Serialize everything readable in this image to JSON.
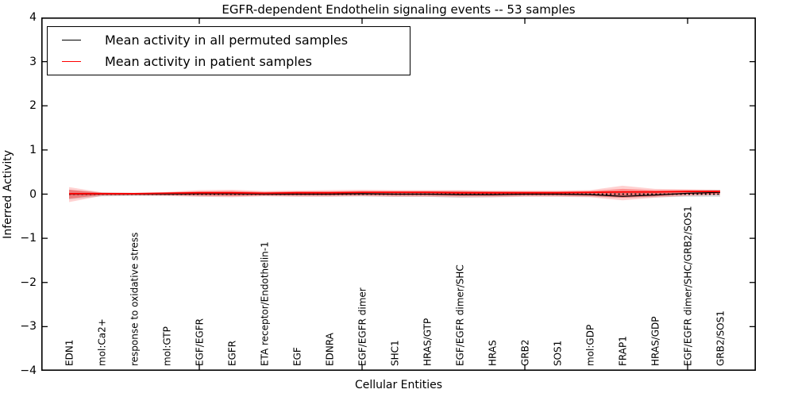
{
  "title": "EGFR-dependent Endothelin signaling events -- 53 samples",
  "axes": {
    "ylabel": "Inferred Activity",
    "xlabel": "Cellular Entities",
    "ylim": [
      -4,
      4
    ],
    "ytick_values": [
      4,
      3,
      2,
      1,
      0,
      -1,
      -2,
      -3,
      -4
    ],
    "ytick_labels": [
      "4",
      "3",
      "2",
      "1",
      "0",
      "−1",
      "−2",
      "−3",
      "−4"
    ],
    "x_major_tick_values": [
      5,
      10,
      15,
      20
    ],
    "grid": false
  },
  "legend": {
    "position": "upper left",
    "entries": [
      {
        "label": "Mean activity in all permuted samples",
        "color": "#000000"
      },
      {
        "label": "Mean activity in patient samples",
        "color": "#ff0000"
      }
    ]
  },
  "colors": {
    "axis": "#000000",
    "zero_line": "#000000",
    "permuted_line": "#000000",
    "patient_line": "#ff0000",
    "permuted_band": "rgba(0,0,0,0.13)",
    "patient_band_outer": "rgba(255,0,0,0.18)",
    "patient_band_inner": "rgba(255,0,0,0.32)"
  },
  "chart_data": {
    "type": "line",
    "title": "EGFR-dependent Endothelin signaling events -- 53 samples",
    "xlabel": "Cellular Entities",
    "ylabel": "Inferred Activity",
    "ylim": [
      -4,
      4
    ],
    "grid": false,
    "legend_position": "upper left",
    "reference_line_y": 0,
    "x": [
      1,
      2,
      3,
      4,
      5,
      6,
      7,
      8,
      9,
      10,
      11,
      12,
      13,
      14,
      15,
      16,
      17,
      18,
      19,
      20,
      21
    ],
    "categories": [
      "EDN1",
      "mol:Ca2+",
      "response to oxidative stress",
      "mol:GTP",
      "EGF/EGFR",
      "EGFR",
      "ETA receptor/Endothelin-1",
      "EGF",
      "EDNRA",
      "EGF/EGFR dimer",
      "SHC1",
      "HRAS/GTP",
      "EGF/EGFR dimer/SHC",
      "HRAS",
      "GRB2",
      "SOS1",
      "mol:GDP",
      "FRAP1",
      "HRAS/GDP",
      "EGF/EGFR dimer/SHC/GRB2/SOS1",
      "GRB2/SOS1"
    ],
    "series": [
      {
        "name": "Mean activity in all permuted samples",
        "color": "#000000",
        "values": [
          0,
          0,
          0,
          0,
          0.01,
          0.01,
          0,
          0,
          0,
          0.01,
          0,
          0,
          -0.01,
          -0.01,
          0,
          0,
          -0.01,
          -0.05,
          -0.02,
          0.02,
          0.04
        ]
      },
      {
        "name": "Mean activity in patient samples",
        "color": "#ff0000",
        "values": [
          0.01,
          0.01,
          0.01,
          0.02,
          0.03,
          0.03,
          0.02,
          0.03,
          0.03,
          0.04,
          0.04,
          0.04,
          0.03,
          0.03,
          0.03,
          0.03,
          0.04,
          0.05,
          0.05,
          0.06,
          0.06
        ]
      }
    ],
    "bands": [
      {
        "name": "permuted samples std band",
        "color": "rgba(0,0,0,0.13)",
        "upper": [
          0.1,
          0.04,
          0.03,
          0.04,
          0.05,
          0.05,
          0.04,
          0.05,
          0.05,
          0.05,
          0.05,
          0.06,
          0.07,
          0.06,
          0.05,
          0.05,
          0.05,
          0.06,
          0.06,
          0.08,
          0.1
        ],
        "lower": [
          -0.12,
          -0.05,
          -0.04,
          -0.04,
          -0.05,
          -0.05,
          -0.04,
          -0.05,
          -0.05,
          -0.05,
          -0.06,
          -0.06,
          -0.08,
          -0.07,
          -0.05,
          -0.05,
          -0.06,
          -0.08,
          -0.07,
          -0.06,
          -0.06
        ]
      },
      {
        "name": "patient samples std band (outer)",
        "color": "rgba(255,0,0,0.18)",
        "upper": [
          0.16,
          0.04,
          0.03,
          0.05,
          0.09,
          0.1,
          0.07,
          0.08,
          0.09,
          0.1,
          0.09,
          0.09,
          0.09,
          0.08,
          0.08,
          0.08,
          0.09,
          0.19,
          0.12,
          0.11,
          0.1
        ],
        "lower": [
          -0.18,
          -0.04,
          -0.03,
          -0.04,
          -0.06,
          -0.07,
          -0.05,
          -0.06,
          -0.06,
          -0.05,
          -0.06,
          -0.06,
          -0.07,
          -0.07,
          -0.06,
          -0.06,
          -0.07,
          -0.14,
          -0.08,
          -0.04,
          -0.02
        ]
      },
      {
        "name": "patient samples std band (inner)",
        "color": "rgba(255,0,0,0.32)",
        "upper": [
          0.1,
          0.03,
          0.02,
          0.04,
          0.06,
          0.07,
          0.05,
          0.06,
          0.06,
          0.07,
          0.07,
          0.07,
          0.07,
          0.06,
          0.06,
          0.06,
          0.07,
          0.12,
          0.09,
          0.09,
          0.08
        ],
        "lower": [
          -0.1,
          -0.02,
          -0.02,
          -0.02,
          -0.03,
          -0.04,
          -0.03,
          -0.03,
          -0.03,
          -0.02,
          -0.03,
          -0.03,
          -0.04,
          -0.04,
          -0.03,
          -0.03,
          -0.04,
          -0.08,
          -0.05,
          -0.01,
          0
        ]
      }
    ]
  }
}
